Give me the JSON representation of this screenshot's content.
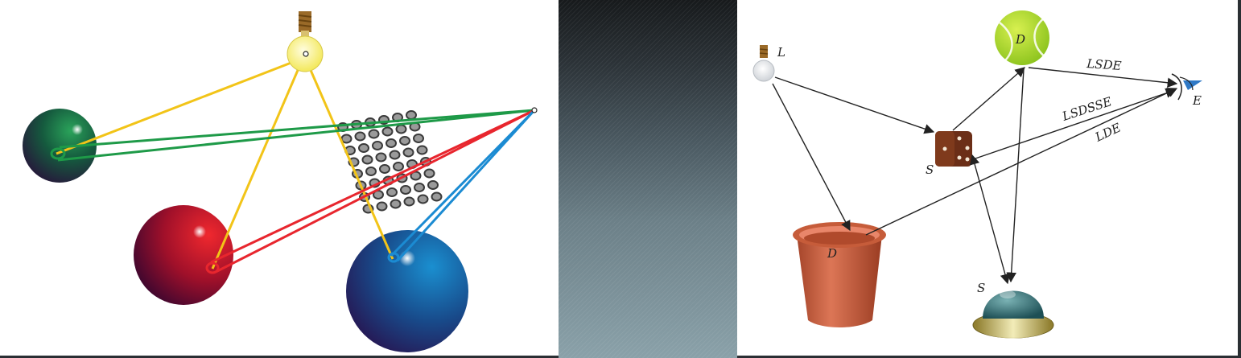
{
  "right_diagram": {
    "light_label": "L",
    "ball_label": "D",
    "dice_label": "S",
    "pot_label": "D",
    "dome_label": "S",
    "eye_label": "E",
    "path_labels": [
      "LSDE",
      "LSDSSE",
      "LDE"
    ]
  },
  "colors": {
    "yellow_rays": "#f2c418",
    "green_rays": "#1e9a48",
    "red_rays": "#e8262e",
    "blue_rays": "#1b8bd2",
    "pixel_grid": "#6e6e6e"
  }
}
